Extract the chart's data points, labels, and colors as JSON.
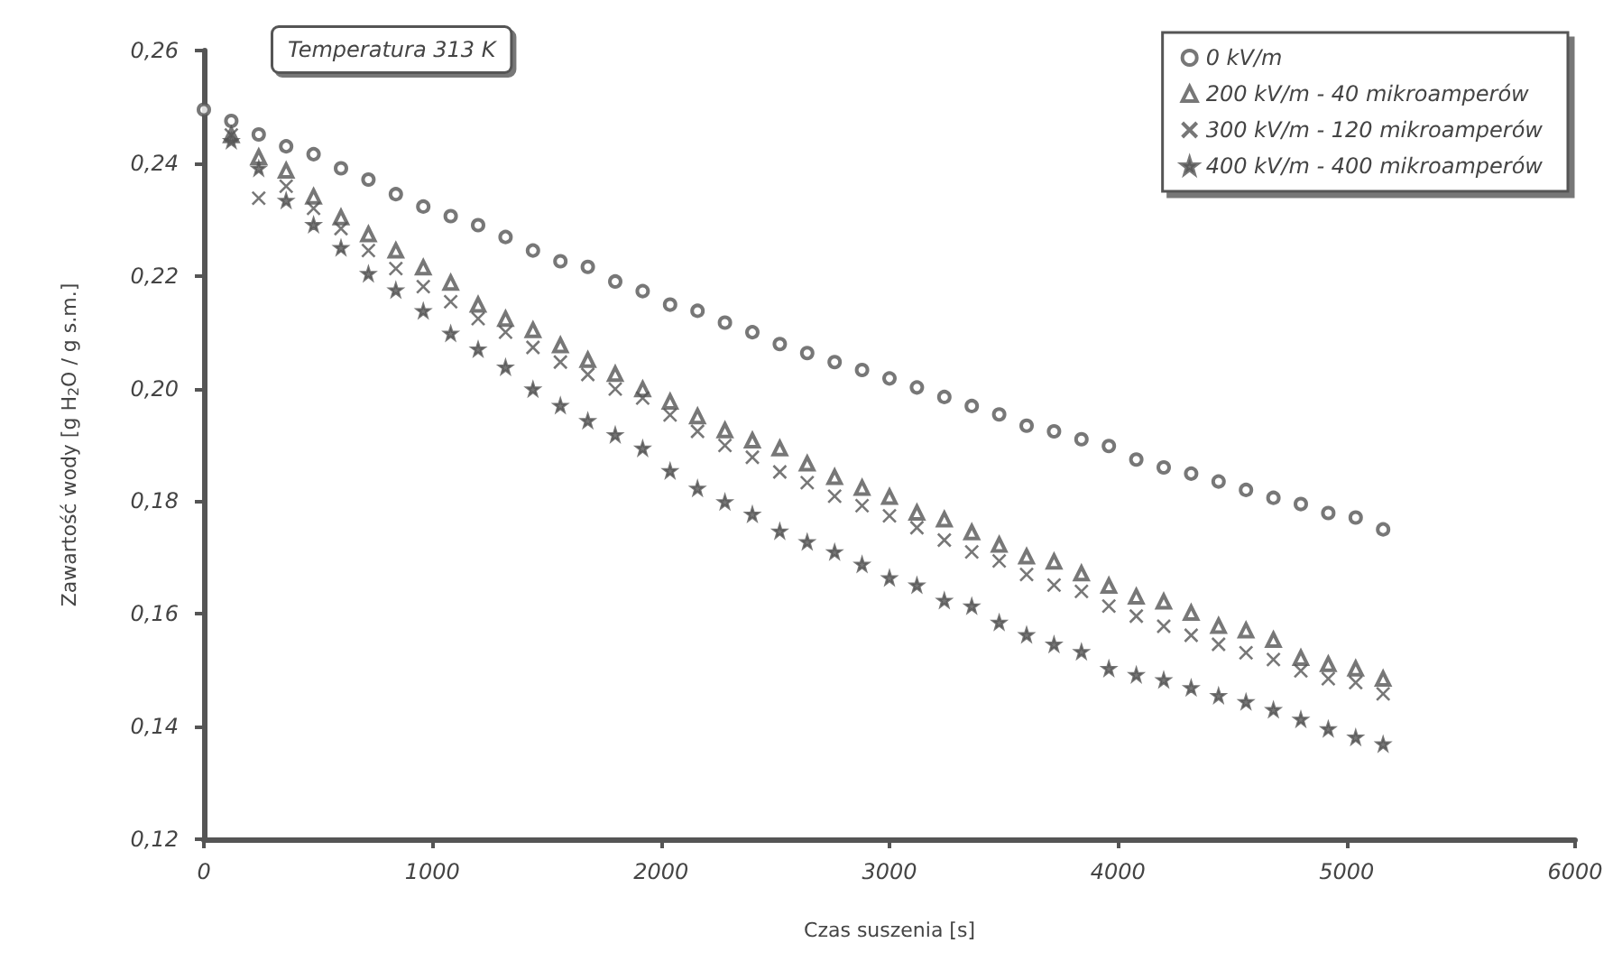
{
  "chart_data": {
    "type": "scatter",
    "xlabel": "Czas suszenia [s]",
    "ylabel": "Zawartość wody [g H$_{2}$O / g s.m.]",
    "annotations": [
      "Temperatura 313 K"
    ],
    "x": [
      120,
      240,
      360,
      480,
      600,
      720,
      840,
      960,
      1080,
      1200,
      1320,
      1440,
      1560,
      1680,
      1800,
      1920,
      2040,
      2160,
      2280,
      2400,
      2520,
      2640,
      2760,
      2880,
      3000,
      3120,
      3240,
      3360,
      3480,
      3600,
      3720,
      3840,
      3960,
      4080,
      4200,
      4320,
      4440,
      4560,
      4680,
      4800,
      4920,
      5040,
      5160
    ],
    "xlim": [
      0,
      6000
    ],
    "xticks": [
      0,
      1000,
      2000,
      3000,
      4000,
      5000,
      6000
    ],
    "ylim": [
      0.12,
      0.26
    ],
    "yticks": [
      {
        "value": 0.12,
        "label": "0,12"
      },
      {
        "value": 0.14,
        "label": "0,14"
      },
      {
        "value": 0.16,
        "label": "0,16"
      },
      {
        "value": 0.18,
        "label": "0,18"
      },
      {
        "value": 0.2,
        "label": "0,20"
      },
      {
        "value": 0.22,
        "label": "0,22"
      },
      {
        "value": 0.24,
        "label": "0,24"
      },
      {
        "value": 0.26,
        "label": "0,26"
      }
    ],
    "legend": "top right",
    "series": [
      {
        "name": "0 kV/m",
        "color": "#555555",
        "marker": "circle",
        "x": [
          0,
          120,
          240,
          360,
          480,
          600,
          720,
          840,
          960,
          1080,
          1200,
          1320,
          1440,
          1560,
          1680,
          1800,
          1920,
          2040,
          2160,
          2280,
          2400,
          2520,
          2640,
          2760,
          2880,
          3000,
          3120,
          3240,
          3360,
          3480,
          3600,
          3720,
          3840,
          3960,
          4080,
          4200,
          4320,
          4440,
          4560,
          4680,
          4800,
          4920,
          5040,
          5160
        ],
        "values": [
          0.2495,
          0.2475,
          0.2451,
          0.243,
          0.2416,
          0.2391,
          0.2371,
          0.2345,
          0.2323,
          0.2306,
          0.229,
          0.2269,
          0.2245,
          0.2226,
          0.2216,
          0.219,
          0.2173,
          0.2149,
          0.2138,
          0.2117,
          0.21,
          0.2079,
          0.2063,
          0.2047,
          0.2033,
          0.2018,
          0.2002,
          0.1985,
          0.1969,
          0.1954,
          0.1934,
          0.1924,
          0.191,
          0.1898,
          0.1874,
          0.186,
          0.1849,
          0.1835,
          0.182,
          0.1806,
          0.1795,
          0.1779,
          0.1771,
          0.175
        ]
      },
      {
        "name": "200 kV/m - 40 mikroamperów",
        "color": "#555555",
        "marker": "triangle",
        "values": [
          0.245,
          0.2411,
          0.2387,
          0.2341,
          0.2304,
          0.2274,
          0.2245,
          0.2215,
          0.2188,
          0.2149,
          0.2124,
          0.2104,
          0.2077,
          0.2051,
          0.2026,
          0.1999,
          0.1977,
          0.1951,
          0.1926,
          0.1908,
          0.1894,
          0.1867,
          0.1843,
          0.1824,
          0.1808,
          0.178,
          0.1768,
          0.1745,
          0.1723,
          0.1702,
          0.1693,
          0.1672,
          0.165,
          0.1631,
          0.1622,
          0.1602,
          0.1579,
          0.1571,
          0.1554,
          0.1522,
          0.1511,
          0.1503,
          0.1485
        ]
      },
      {
        "name": "300 kV/m - 120 mikroamperów",
        "color": "#555555",
        "marker": "cross",
        "values": [
          0.245,
          0.2338,
          0.2359,
          0.232,
          0.2284,
          0.2245,
          0.2213,
          0.2181,
          0.2154,
          0.2124,
          0.21,
          0.2073,
          0.2047,
          0.2025,
          0.1999,
          0.1983,
          0.1953,
          0.1924,
          0.1899,
          0.1878,
          0.1852,
          0.1833,
          0.1809,
          0.1792,
          0.1774,
          0.1753,
          0.1731,
          0.171,
          0.1694,
          0.167,
          0.1651,
          0.164,
          0.1614,
          0.1596,
          0.1578,
          0.1562,
          0.1546,
          0.1531,
          0.1519,
          0.1499,
          0.1485,
          0.1478,
          0.1458
        ]
      },
      {
        "name": "400 kV/m - 400 mikroamperów",
        "color": "#555555",
        "marker": "star",
        "values": [
          0.244,
          0.2391,
          0.2334,
          0.2291,
          0.225,
          0.2204,
          0.2175,
          0.2138,
          0.2098,
          0.207,
          0.2038,
          0.1999,
          0.197,
          0.1943,
          0.1918,
          0.1894,
          0.1854,
          0.1823,
          0.1799,
          0.1777,
          0.1747,
          0.1728,
          0.171,
          0.1688,
          0.1664,
          0.1651,
          0.1624,
          0.1614,
          0.1585,
          0.1563,
          0.1546,
          0.1533,
          0.1503,
          0.1492,
          0.1483,
          0.1469,
          0.1455,
          0.1444,
          0.143,
          0.1413,
          0.1396,
          0.1381,
          0.1369
        ]
      }
    ]
  }
}
